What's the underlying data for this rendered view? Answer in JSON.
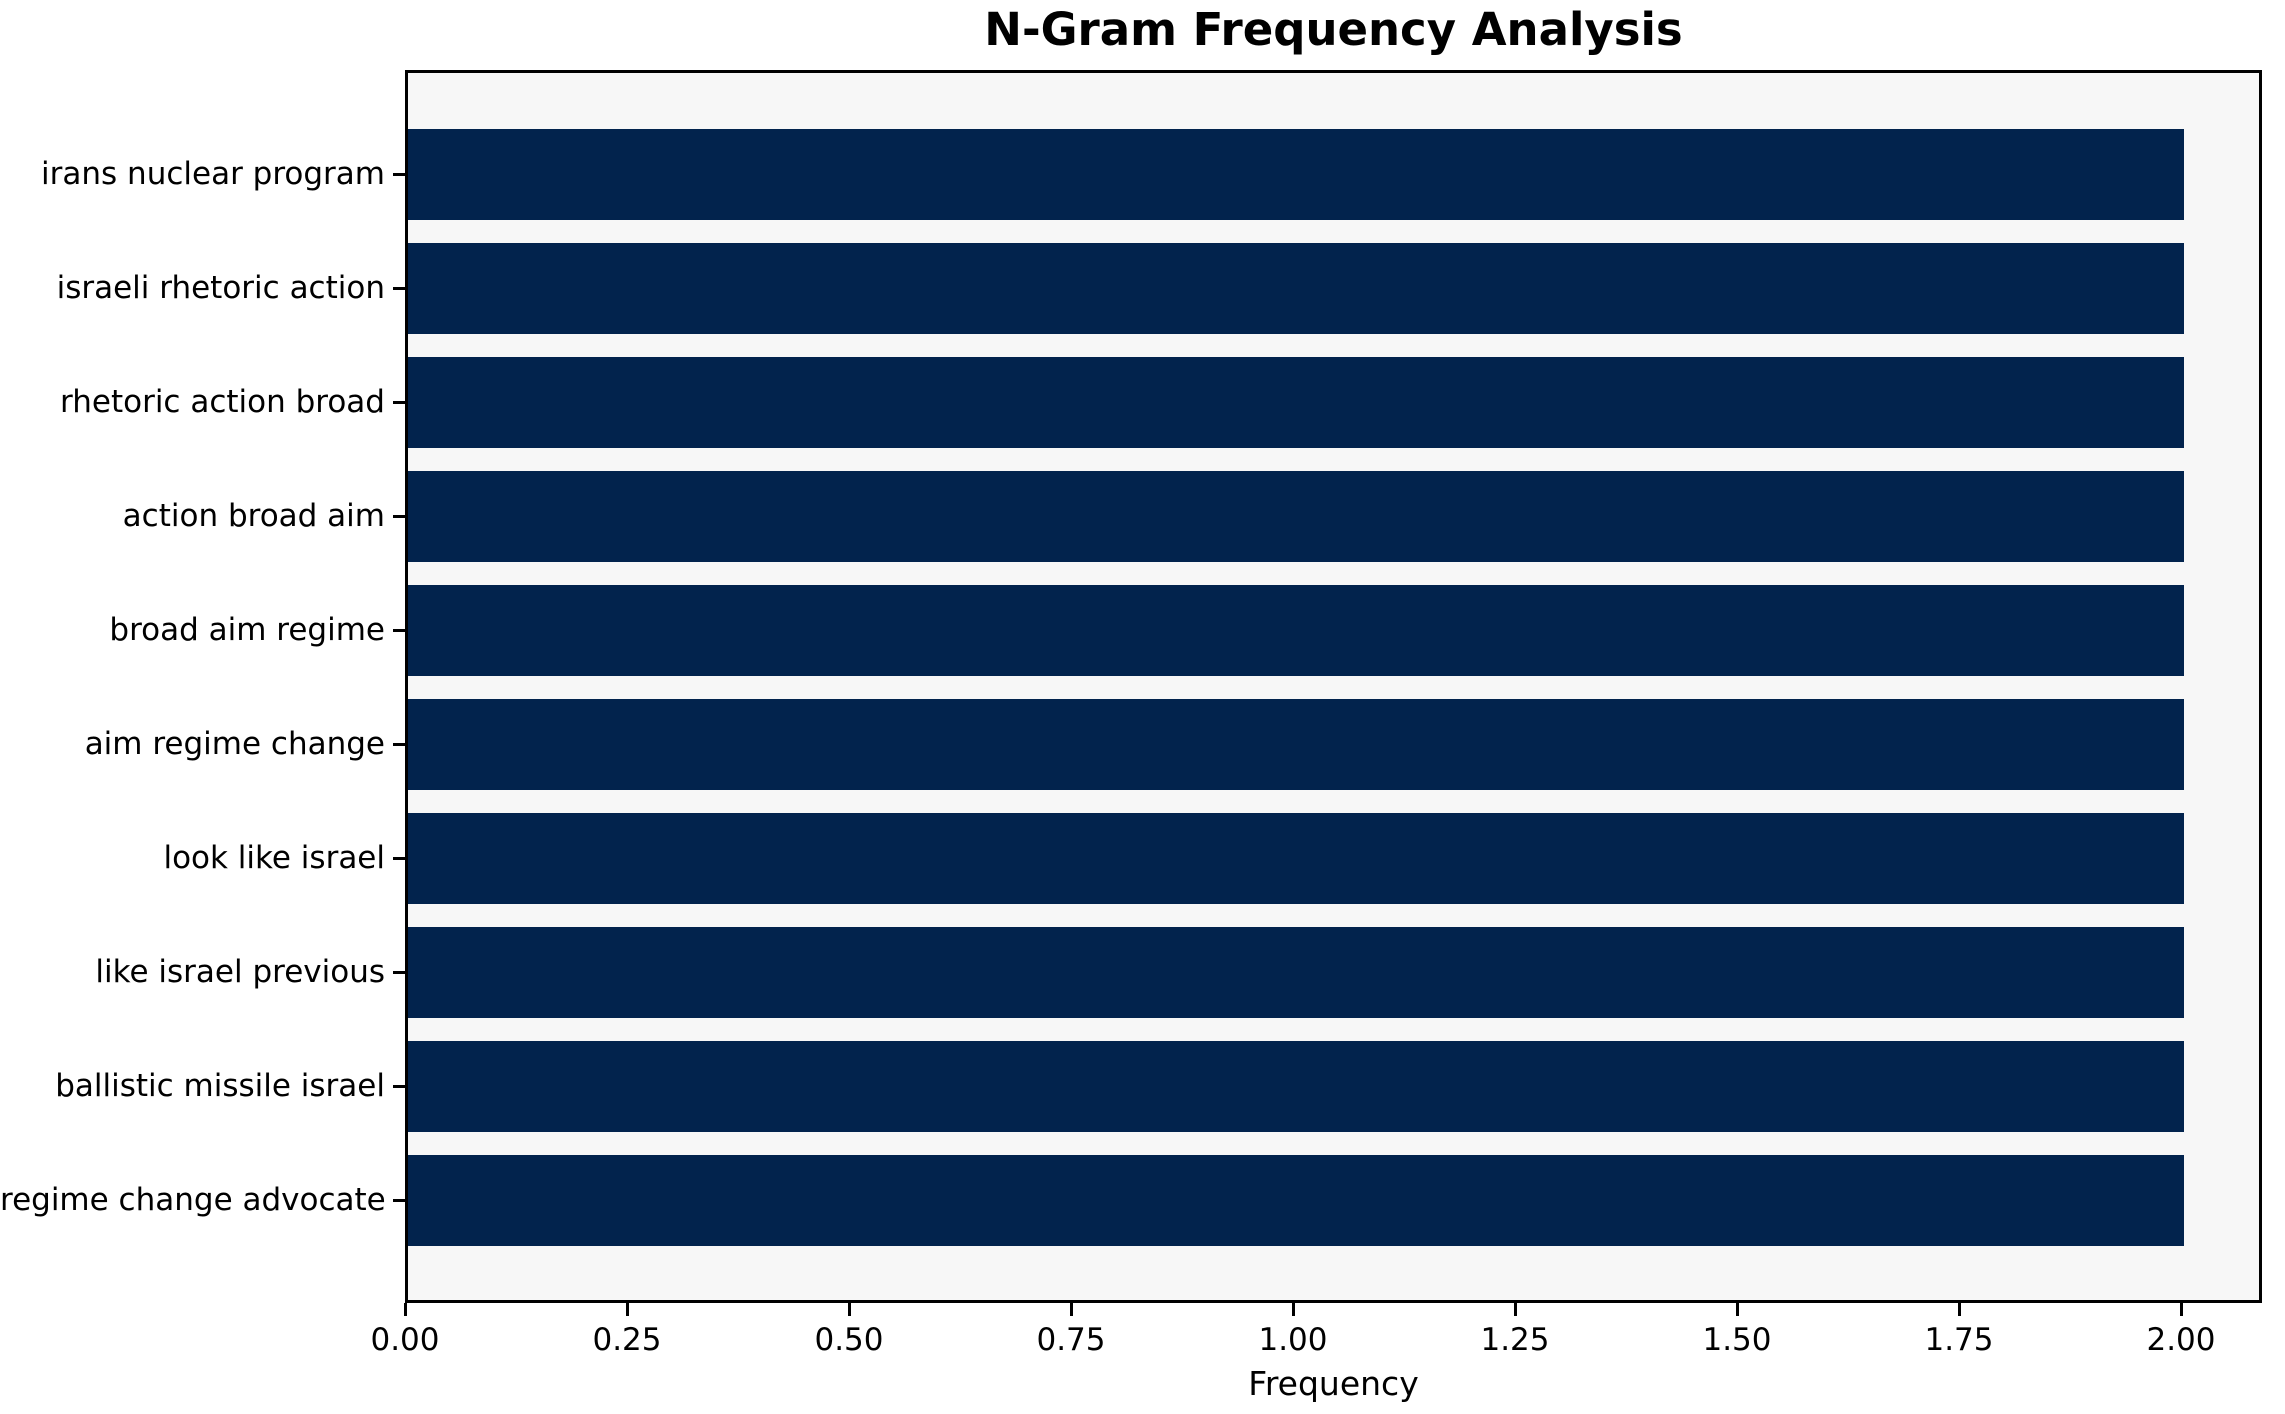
{
  "chart_data": {
    "type": "bar",
    "orientation": "horizontal",
    "title": "N-Gram Frequency Analysis",
    "xlabel": "Frequency",
    "ylabel": "",
    "categories": [
      "irans nuclear program",
      "israeli rhetoric action",
      "rhetoric action broad",
      "action broad aim",
      "broad aim regime",
      "aim regime change",
      "look like israel",
      "like israel previous",
      "ballistic missile israel",
      "regime change advocate"
    ],
    "values": [
      2,
      2,
      2,
      2,
      2,
      2,
      2,
      2,
      2,
      2
    ],
    "xlim": [
      0,
      2.09
    ],
    "xticks": [
      0,
      0.25,
      0.5,
      0.75,
      1.0,
      1.25,
      1.5,
      1.75,
      2.0
    ],
    "xtick_labels": [
      "0.00",
      "0.25",
      "0.50",
      "0.75",
      "1.00",
      "1.25",
      "1.50",
      "1.75",
      "2.00"
    ],
    "grid": false,
    "legend": null,
    "bar_color": "#02234d",
    "plot_background": "#f7f7f7",
    "figure_background": "#ffffff",
    "axis_color": "#000000"
  }
}
